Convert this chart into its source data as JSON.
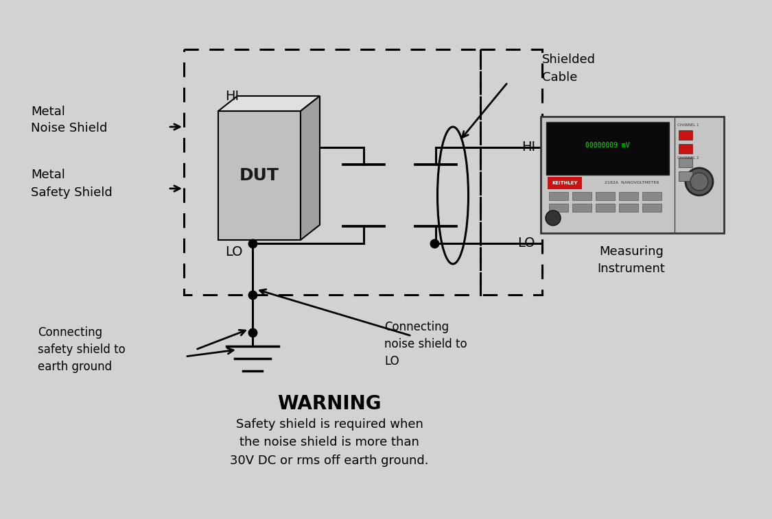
{
  "bg_color": "#d2d2d2",
  "warning_title": "WARNING",
  "warning_text": "Safety shield is required when\nthe noise shield is more than\n30V DC or rms off earth ground.",
  "label_metal_noise": "Metal\nNoise Shield",
  "label_metal_safety": "Metal\nSafety Shield",
  "label_shielded_cable": "Shielded\nCable",
  "label_measuring": "Measuring\nInstrument",
  "label_connecting_safety": "Connecting\nsafety shield to\nearth ground",
  "label_connecting_noise": "Connecting\nnoise shield to\nLO",
  "label_HI_left": "HI",
  "label_LO_left": "LO",
  "label_HI_right": "HI",
  "label_LO_right": "LO",
  "label_DUT": "DUT",
  "line_color": "#000000"
}
